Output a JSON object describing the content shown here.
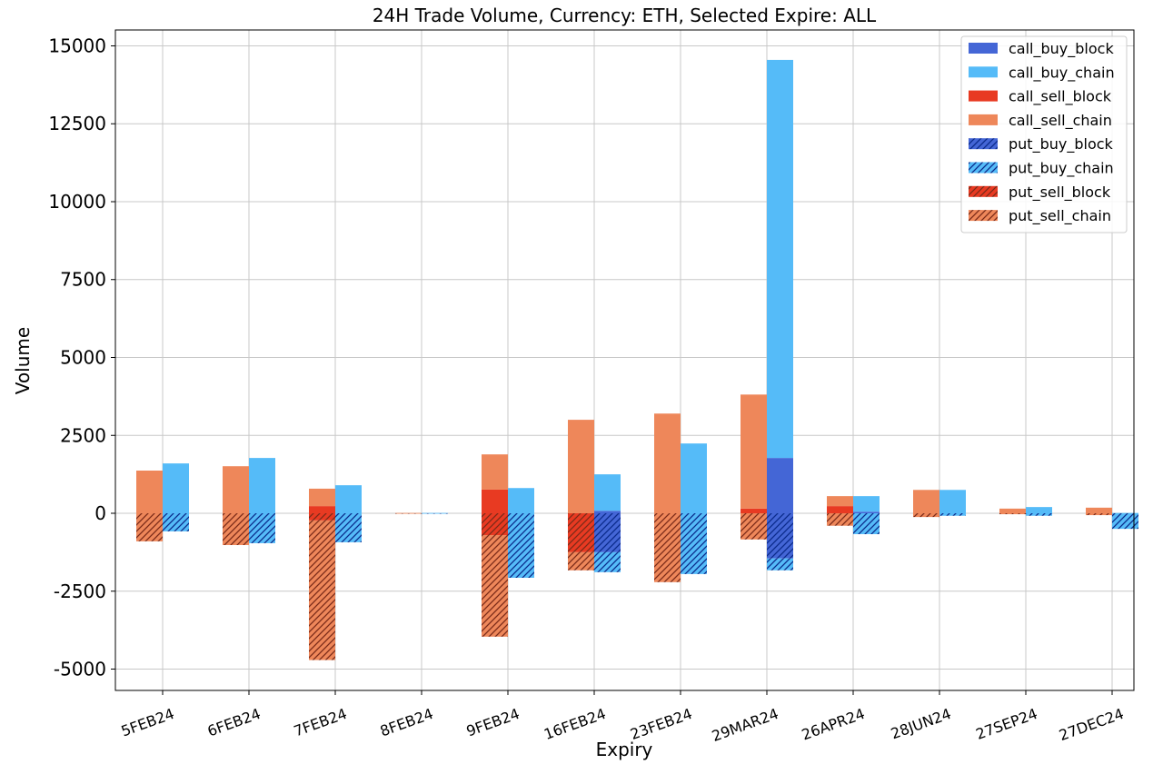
{
  "chart_data": {
    "type": "bar",
    "title": "24H Trade Volume, Currency: ETH, Selected Expire: ALL",
    "xlabel": "Expiry",
    "ylabel": "Volume",
    "ylim": [
      -5685,
      15510
    ],
    "yticks": [
      -5000,
      -2500,
      0,
      2500,
      5000,
      7500,
      10000,
      12500,
      15000
    ],
    "grid": true,
    "legend_position": "top-right",
    "stacked": true,
    "categories": [
      "5FEB24",
      "6FEB24",
      "7FEB24",
      "8FEB24",
      "9FEB24",
      "16FEB24",
      "23FEB24",
      "29MAR24",
      "26APR24",
      "28JUN24",
      "27SEP24",
      "27DEC24"
    ],
    "series": [
      {
        "name": "call_buy_block",
        "side": "buy",
        "color": "#4466d6",
        "hatch": false,
        "values": [
          0,
          0,
          0,
          0,
          0,
          80,
          0,
          1775,
          50,
          0,
          0,
          0
        ]
      },
      {
        "name": "call_buy_chain",
        "side": "buy",
        "color": "#55bbf8",
        "hatch": false,
        "values": [
          1600,
          1775,
          900,
          10,
          810,
          1170,
          2240,
          12775,
          500,
          750,
          200,
          10
        ]
      },
      {
        "name": "call_sell_block",
        "side": "sell",
        "color": "#e83a22",
        "hatch": false,
        "values": [
          0,
          0,
          230,
          0,
          760,
          0,
          0,
          150,
          230,
          0,
          0,
          0
        ]
      },
      {
        "name": "call_sell_chain",
        "side": "sell",
        "color": "#ee875a",
        "hatch": false,
        "values": [
          1370,
          1510,
          560,
          10,
          1130,
          3000,
          3200,
          3660,
          320,
          750,
          150,
          180
        ]
      },
      {
        "name": "put_buy_block",
        "side": "buy",
        "color": "#4466d6",
        "hatch": true,
        "values": [
          0,
          0,
          0,
          0,
          0,
          -1250,
          0,
          -1450,
          0,
          0,
          0,
          0
        ]
      },
      {
        "name": "put_buy_chain",
        "side": "buy",
        "color": "#55bbf8",
        "hatch": true,
        "values": [
          -580,
          -960,
          -930,
          -5,
          -2070,
          -640,
          -1950,
          -380,
          -670,
          -80,
          -80,
          -500
        ]
      },
      {
        "name": "put_sell_block",
        "side": "sell",
        "color": "#e83a22",
        "hatch": true,
        "values": [
          0,
          0,
          -230,
          0,
          -700,
          -1250,
          0,
          0,
          0,
          0,
          0,
          0
        ]
      },
      {
        "name": "put_sell_chain",
        "side": "sell",
        "color": "#ee875a",
        "hatch": true,
        "values": [
          -900,
          -1020,
          -4480,
          -5,
          -3260,
          -580,
          -2210,
          -840,
          -400,
          -120,
          -30,
          -60
        ]
      }
    ]
  }
}
